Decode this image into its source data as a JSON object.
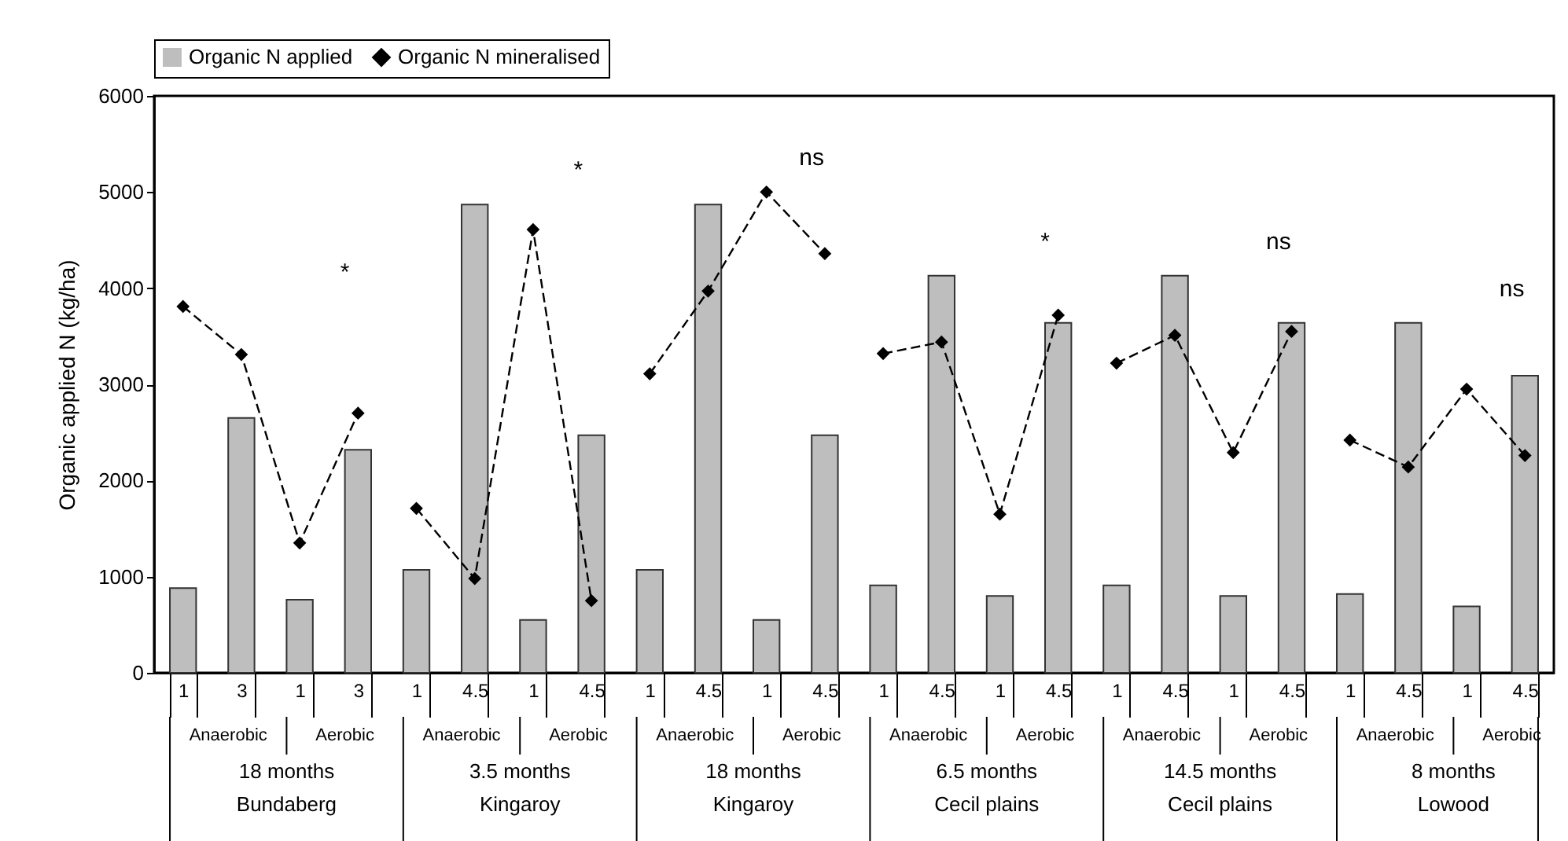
{
  "chart_data": {
    "type": "bar",
    "categories": [
      "1",
      "3",
      "1",
      "3",
      "1",
      "4.5",
      "1",
      "4.5",
      "1",
      "4.5",
      "1",
      "4.5",
      "1",
      "4.5",
      "1",
      "4.5",
      "1",
      "4.5",
      "1",
      "4.5",
      "1",
      "4.5",
      "1",
      "4.5"
    ],
    "series": [
      {
        "name": "Organic N applied",
        "color": "#bebebe",
        "values": [
          880,
          2650,
          760,
          2320,
          1070,
          4870,
          550,
          2470,
          1070,
          4870,
          550,
          2470,
          910,
          4130,
          800,
          3640,
          910,
          4130,
          800,
          3640,
          820,
          3640,
          690,
          3090
        ]
      },
      {
        "name": "Organic N mineralised",
        "type": "line",
        "color": "#000000",
        "values": [
          3810,
          3310,
          1350,
          2700,
          1710,
          980,
          4610,
          750,
          3110,
          3970,
          5000,
          4360,
          3320,
          3440,
          1650,
          3720,
          3220,
          3510,
          2290,
          3550,
          2420,
          2140,
          2950,
          2260
        ]
      }
    ],
    "ylabel": "Organic applied N (kg/ha)",
    "ylim": [
      0,
      6000
    ],
    "yticks": [
      0,
      1000,
      2000,
      3000,
      4000,
      5000,
      6000
    ],
    "grid": false,
    "legend": "top",
    "marker": "diamond",
    "line_style": "dashed",
    "annotations": [
      "Anaerobic",
      "Aerobic",
      "Anaerobic",
      "Aerobic",
      "Anaerobic",
      "Aerobic",
      "Anaerobic",
      "Aerobic",
      "Anaerobic",
      "Aerobic",
      "Anaerobic",
      "Aerobic",
      "18 months",
      "3.5 months",
      "18 months",
      "6.5 months",
      "14.5 months",
      "8 months",
      "Bundaberg",
      "Kingaroy",
      "Kingaroy",
      "Cecil plains",
      "Cecil plains",
      "Lowood",
      "*",
      "*",
      "ns",
      "*",
      "ns",
      "ns"
    ]
  }
}
